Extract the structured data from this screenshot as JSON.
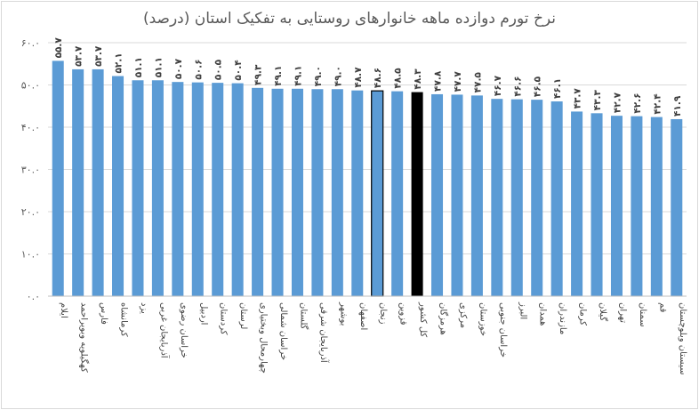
{
  "chart_data": {
    "type": "bar",
    "title": "نرخ تورم دوازده ماهه خانوارهای روستایی به تفکیک استان (درصد)",
    "xlabel": "",
    "ylabel": "",
    "ylim": [
      0,
      60
    ],
    "yticks": [
      0,
      10,
      20,
      30,
      40,
      50,
      60
    ],
    "ytick_labels": [
      "۰.۰",
      "۱۰.۰",
      "۲۰.۰",
      "۳۰.۰",
      "۴۰.۰",
      "۵۰.۰",
      "۶۰.۰"
    ],
    "grid": true,
    "legend": "none",
    "categories": [
      "ایلام",
      "کهگیلویه وبویراحمد",
      "فارس",
      "کرمانشاه",
      "یزد",
      "آذربایجان غربی",
      "خراسان رضوی",
      "اردبیل",
      "کردستان",
      "لرستان",
      "چهارمحال وبختیاری",
      "خراسان شمالی",
      "گلستان",
      "آذربایجان شرقی",
      "بوشهر",
      "اصفهان",
      "زنجان",
      "قزوین",
      "کل کشور",
      "هرمزگان",
      "مرکزی",
      "خوزستان",
      "خراسان جنوبی",
      "البرز",
      "همدان",
      "مازندران",
      "کرمان",
      "گیلان",
      "تهران",
      "سمنان",
      "قم",
      "سیستان وبلوچستان"
    ],
    "values": [
      55.7,
      53.7,
      53.7,
      52.1,
      51.1,
      51.1,
      50.7,
      50.6,
      50.5,
      50.4,
      49.3,
      49.1,
      49.1,
      49.0,
      49.0,
      48.7,
      48.6,
      48.5,
      48.3,
      47.8,
      47.7,
      47.5,
      46.7,
      46.6,
      46.5,
      46.1,
      43.7,
      43.3,
      42.7,
      42.6,
      42.4,
      41.9
    ],
    "value_labels": [
      "۵۵.۷",
      "۵۳.۷",
      "۵۳.۷",
      "۵۲.۱",
      "۵۱.۱",
      "۵۱.۱",
      "۵۰.۷",
      "۵۰.۶",
      "۵۰.۵",
      "۵۰.۴",
      "۴۹.۳",
      "۴۹.۱",
      "۴۹.۱",
      "۴۹.۰",
      "۴۹.۰",
      "۴۸.۷",
      "۴۸.۶",
      "۴۸.۵",
      "۴۸.۳",
      "۴۷.۸",
      "۴۷.۷",
      "۴۷.۵",
      "۴۶.۷",
      "۴۶.۶",
      "۴۶.۵",
      "۴۶.۱",
      "۴۳.۷",
      "۴۳.۳",
      "۴۲.۷",
      "۴۲.۶",
      "۴۲.۴",
      "۴۱.۹"
    ],
    "colors": {
      "default": "#5b9bd5",
      "highlight": "#000000",
      "outlined": "#5b9bd5",
      "outline": "#000000"
    },
    "highlight_index": 18,
    "outlined_index": 16
  }
}
